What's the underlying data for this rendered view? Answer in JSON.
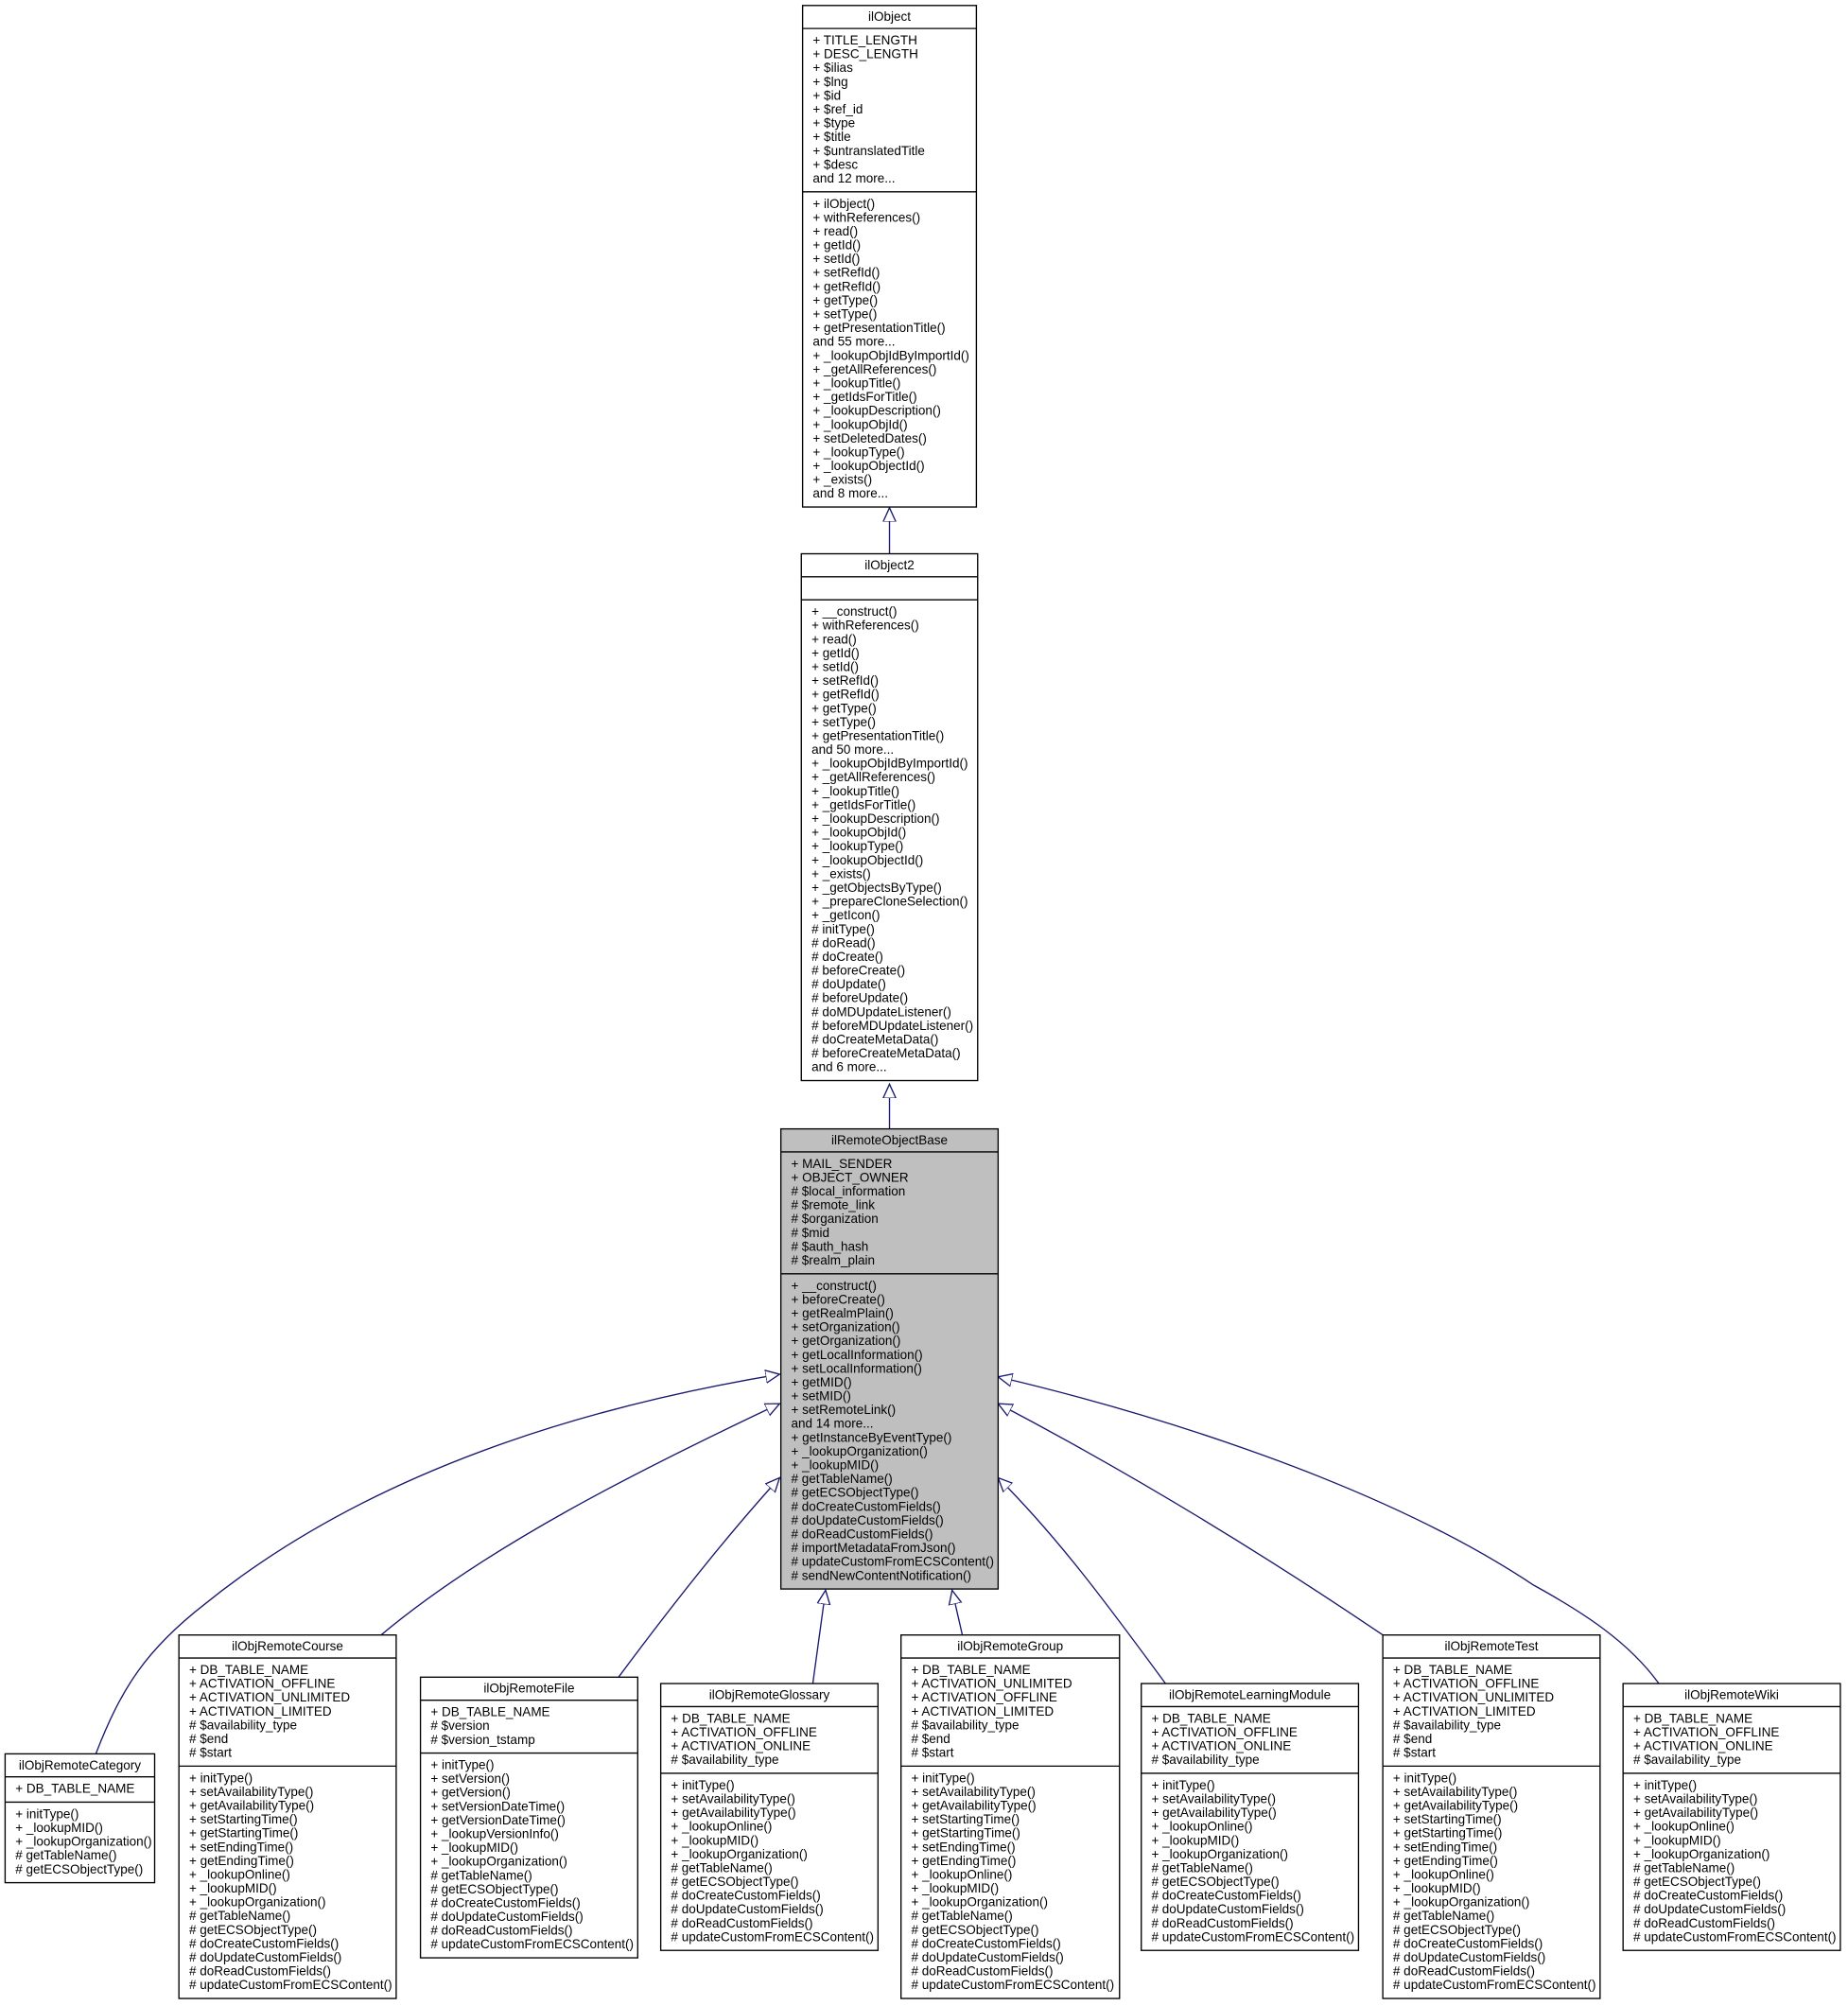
{
  "nodes": [
    {
      "name": "ilObject",
      "attributes": [
        "+ TITLE_LENGTH",
        "+ DESC_LENGTH",
        "+ $ilias",
        "+ $lng",
        "+ $id",
        "+ $ref_id",
        "+ $type",
        "+ $title",
        "+ $untranslatedTitle",
        "+ $desc",
        "and 12 more..."
      ],
      "methods": [
        "+ ilObject()",
        "+ withReferences()",
        "+ read()",
        "+ getId()",
        "+ setId()",
        "+ setRefId()",
        "+ getRefId()",
        "+ getType()",
        "+ setType()",
        "+ getPresentationTitle()",
        "and 55 more...",
        "+ _lookupObjIdByImportId()",
        "+ _getAllReferences()",
        "+ _lookupTitle()",
        "+ _getIdsForTitle()",
        "+ _lookupDescription()",
        "+ _lookupObjId()",
        "+ setDeletedDates()",
        "+ _lookupType()",
        "+ _lookupObjectId()",
        "+ _exists()",
        "and 8 more..."
      ]
    },
    {
      "name": "ilObject2",
      "attributes": [],
      "methods": [
        "+ __construct()",
        "+ withReferences()",
        "+ read()",
        "+ getId()",
        "+ setId()",
        "+ setRefId()",
        "+ getRefId()",
        "+ getType()",
        "+ setType()",
        "+ getPresentationTitle()",
        "and 50 more...",
        "+ _lookupObjIdByImportId()",
        "+ _getAllReferences()",
        "+ _lookupTitle()",
        "+ _getIdsForTitle()",
        "+ _lookupDescription()",
        "+ _lookupObjId()",
        "+ _lookupType()",
        "+ _lookupObjectId()",
        "+ _exists()",
        "+ _getObjectsByType()",
        "+ _prepareCloneSelection()",
        "+ _getIcon()",
        "# initType()",
        "# doRead()",
        "# doCreate()",
        "# beforeCreate()",
        "# doUpdate()",
        "# beforeUpdate()",
        "# doMDUpdateListener()",
        "# beforeMDUpdateListener()",
        "# doCreateMetaData()",
        "# beforeCreateMetaData()",
        "and 6 more..."
      ]
    },
    {
      "name": "ilRemoteObjectBase",
      "attributes": [
        "+ MAIL_SENDER",
        "+ OBJECT_OWNER",
        "# $local_information",
        "# $remote_link",
        "# $organization",
        "# $mid",
        "# $auth_hash",
        "# $realm_plain"
      ],
      "methods": [
        "+ __construct()",
        "+ beforeCreate()",
        "+ getRealmPlain()",
        "+ setOrganization()",
        "+ getOrganization()",
        "+ getLocalInformation()",
        "+ setLocalInformation()",
        "+ getMID()",
        "+ setMID()",
        "+ setRemoteLink()",
        "and 14 more...",
        "+ getInstanceByEventType()",
        "+ _lookupOrganization()",
        "+ _lookupMID()",
        "# getTableName()",
        "# getECSObjectType()",
        "# doCreateCustomFields()",
        "# doUpdateCustomFields()",
        "# doReadCustomFields()",
        "# importMetadataFromJson()",
        "# updateCustomFromECSContent()",
        "# sendNewContentNotification()"
      ]
    },
    {
      "name": "ilObjRemoteCategory",
      "attributes": [
        "+ DB_TABLE_NAME"
      ],
      "methods": [
        "+ initType()",
        "+ _lookupMID()",
        "+ _lookupOrganization()",
        "# getTableName()",
        "# getECSObjectType()"
      ]
    },
    {
      "name": "ilObjRemoteCourse",
      "attributes": [
        "+ DB_TABLE_NAME",
        "+ ACTIVATION_OFFLINE",
        "+ ACTIVATION_UNLIMITED",
        "+ ACTIVATION_LIMITED",
        "# $availability_type",
        "# $end",
        "# $start"
      ],
      "methods": [
        "+ initType()",
        "+ setAvailabilityType()",
        "+ getAvailabilityType()",
        "+ setStartingTime()",
        "+ getStartingTime()",
        "+ setEndingTime()",
        "+ getEndingTime()",
        "+ _lookupOnline()",
        "+ _lookupMID()",
        "+ _lookupOrganization()",
        "# getTableName()",
        "# getECSObjectType()",
        "# doCreateCustomFields()",
        "# doUpdateCustomFields()",
        "# doReadCustomFields()",
        "# updateCustomFromECSContent()"
      ]
    },
    {
      "name": "ilObjRemoteFile",
      "attributes": [
        "+ DB_TABLE_NAME",
        "# $version",
        "# $version_tstamp"
      ],
      "methods": [
        "+ initType()",
        "+ setVersion()",
        "+ getVersion()",
        "+ setVersionDateTime()",
        "+ getVersionDateTime()",
        "+ _lookupVersionInfo()",
        "+ _lookupMID()",
        "+ _lookupOrganization()",
        "# getTableName()",
        "# getECSObjectType()",
        "# doCreateCustomFields()",
        "# doUpdateCustomFields()",
        "# doReadCustomFields()",
        "# updateCustomFromECSContent()"
      ]
    },
    {
      "name": "ilObjRemoteGlossary",
      "attributes": [
        "+ DB_TABLE_NAME",
        "+ ACTIVATION_OFFLINE",
        "+ ACTIVATION_ONLINE",
        "# $availability_type"
      ],
      "methods": [
        "+ initType()",
        "+ setAvailabilityType()",
        "+ getAvailabilityType()",
        "+ _lookupOnline()",
        "+ _lookupMID()",
        "+ _lookupOrganization()",
        "# getTableName()",
        "# getECSObjectType()",
        "# doCreateCustomFields()",
        "# doUpdateCustomFields()",
        "# doReadCustomFields()",
        "# updateCustomFromECSContent()"
      ]
    },
    {
      "name": "ilObjRemoteGroup",
      "attributes": [
        "+ DB_TABLE_NAME",
        "+ ACTIVATION_UNLIMITED",
        "+ ACTIVATION_OFFLINE",
        "+ ACTIVATION_LIMITED",
        "# $availability_type",
        "# $end",
        "# $start"
      ],
      "methods": [
        "+ initType()",
        "+ setAvailabilityType()",
        "+ getAvailabilityType()",
        "+ setStartingTime()",
        "+ getStartingTime()",
        "+ setEndingTime()",
        "+ getEndingTime()",
        "+ _lookupOnline()",
        "+ _lookupMID()",
        "+ _lookupOrganization()",
        "# getTableName()",
        "# getECSObjectType()",
        "# doCreateCustomFields()",
        "# doUpdateCustomFields()",
        "# doReadCustomFields()",
        "# updateCustomFromECSContent()"
      ]
    },
    {
      "name": "ilObjRemoteLearningModule",
      "attributes": [
        "+ DB_TABLE_NAME",
        "+ ACTIVATION_OFFLINE",
        "+ ACTIVATION_ONLINE",
        "# $availability_type"
      ],
      "methods": [
        "+ initType()",
        "+ setAvailabilityType()",
        "+ getAvailabilityType()",
        "+ _lookupOnline()",
        "+ _lookupMID()",
        "+ _lookupOrganization()",
        "# getTableName()",
        "# getECSObjectType()",
        "# doCreateCustomFields()",
        "# doUpdateCustomFields()",
        "# doReadCustomFields()",
        "# updateCustomFromECSContent()"
      ]
    },
    {
      "name": "ilObjRemoteTest",
      "attributes": [
        "+ DB_TABLE_NAME",
        "+ ACTIVATION_OFFLINE",
        "+ ACTIVATION_UNLIMITED",
        "+ ACTIVATION_LIMITED",
        "# $availability_type",
        "# $end",
        "# $start"
      ],
      "methods": [
        "+ initType()",
        "+ setAvailabilityType()",
        "+ getAvailabilityType()",
        "+ setStartingTime()",
        "+ getStartingTime()",
        "+ setEndingTime()",
        "+ getEndingTime()",
        "+ _lookupOnline()",
        "+ _lookupMID()",
        "+ _lookupOrganization()",
        "# getTableName()",
        "# getECSObjectType()",
        "# doCreateCustomFields()",
        "# doUpdateCustomFields()",
        "# doReadCustomFields()",
        "# updateCustomFromECSContent()"
      ]
    },
    {
      "name": "ilObjRemoteWiki",
      "attributes": [
        "+ DB_TABLE_NAME",
        "+ ACTIVATION_OFFLINE",
        "+ ACTIVATION_ONLINE",
        "# $availability_type"
      ],
      "methods": [
        "+ initType()",
        "+ setAvailabilityType()",
        "+ getAvailabilityType()",
        "+ _lookupOnline()",
        "+ _lookupMID()",
        "+ _lookupOrganization()",
        "# getTableName()",
        "# getECSObjectType()",
        "# doCreateCustomFields()",
        "# doUpdateCustomFields()",
        "# doReadCustomFields()",
        "# updateCustomFromECSContent()"
      ]
    }
  ]
}
